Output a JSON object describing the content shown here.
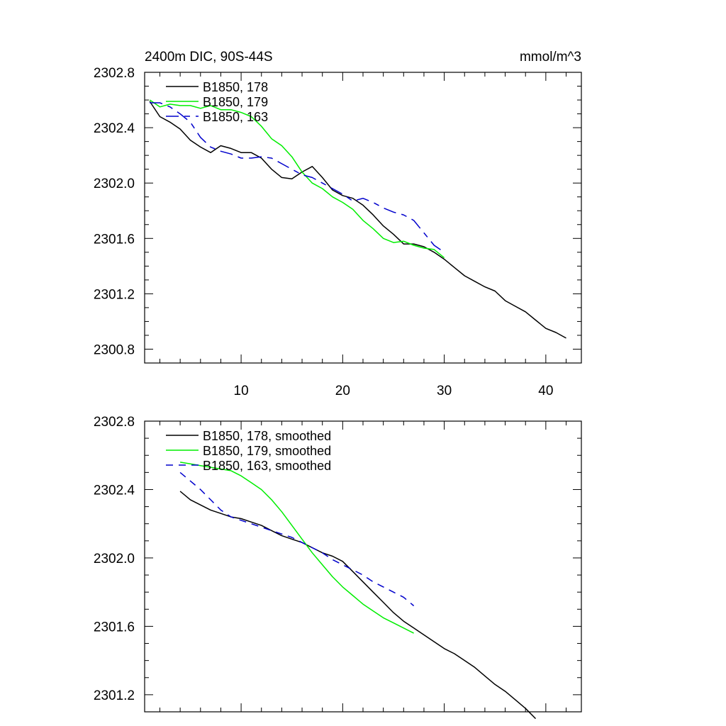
{
  "page": {
    "left_title": "2400m DIC, 90S-44S",
    "right_title": "mmol/m^3"
  },
  "colors": {
    "black": "#000000",
    "green": "#00ee00",
    "blue": "#0000cc"
  },
  "chart_data": [
    {
      "type": "line",
      "title": "2400m DIC, 90S-44S",
      "units": "mmol/m^3",
      "xlim": [
        0.5,
        43.5
      ],
      "ylim": [
        2300.7,
        2302.8
      ],
      "xticks": [
        10,
        20,
        30,
        40
      ],
      "xtick_labels": [
        "10",
        "20",
        "30",
        "40"
      ],
      "yticks": [
        2300.8,
        2301.2,
        2301.6,
        2302.0,
        2302.4,
        2302.8
      ],
      "ytick_labels": [
        "2300.8",
        "2301.2",
        "2301.6",
        "2302.0",
        "2302.4",
        "2302.8"
      ],
      "legend_position": "top-left",
      "series": [
        {
          "name": "B1850, 178",
          "color": "#000000",
          "dash": "solid",
          "x": [
            1,
            2,
            3,
            4,
            5,
            6,
            7,
            8,
            9,
            10,
            11,
            12,
            13,
            14,
            15,
            16,
            17,
            18,
            19,
            20,
            21,
            22,
            23,
            24,
            25,
            26,
            27,
            28,
            29,
            30,
            31,
            32,
            33,
            34,
            35,
            36,
            37,
            38,
            39,
            40,
            41,
            42
          ],
          "y": [
            2302.59,
            2302.48,
            2302.44,
            2302.39,
            2302.31,
            2302.26,
            2302.22,
            2302.27,
            2302.25,
            2302.22,
            2302.22,
            2302.18,
            2302.1,
            2302.04,
            2302.03,
            2302.08,
            2302.12,
            2302.04,
            2301.95,
            2301.91,
            2301.89,
            2301.84,
            2301.77,
            2301.69,
            2301.63,
            2301.56,
            2301.56,
            2301.54,
            2301.5,
            2301.45,
            2301.39,
            2301.33,
            2301.29,
            2301.25,
            2301.22,
            2301.15,
            2301.11,
            2301.07,
            2301.01,
            2300.95,
            2300.92,
            2300.88
          ]
        },
        {
          "name": "B1850, 179",
          "color": "#00ee00",
          "dash": "solid",
          "x": [
            1,
            2,
            3,
            4,
            5,
            6,
            7,
            8,
            9,
            10,
            11,
            12,
            13,
            14,
            15,
            16,
            17,
            18,
            19,
            20,
            21,
            22,
            23,
            24,
            25,
            26,
            27,
            28,
            29,
            30
          ],
          "y": [
            2302.6,
            2302.55,
            2302.57,
            2302.56,
            2302.56,
            2302.54,
            2302.56,
            2302.53,
            2302.53,
            2302.51,
            2302.48,
            2302.41,
            2302.32,
            2302.27,
            2302.19,
            2302.08,
            2302.0,
            2301.96,
            2301.9,
            2301.86,
            2301.81,
            2301.73,
            2301.67,
            2301.6,
            2301.57,
            2301.58,
            2301.55,
            2301.53,
            2301.52,
            2301.46
          ]
        },
        {
          "name": "B1850, 163",
          "color": "#0000cc",
          "dash": "dash",
          "x": [
            1,
            2,
            3,
            4,
            5,
            6,
            7,
            8,
            9,
            10,
            11,
            12,
            13,
            14,
            15,
            16,
            17,
            18,
            19,
            20,
            21,
            22,
            23,
            24,
            25,
            26,
            27,
            28,
            29,
            30
          ],
          "y": [
            2302.58,
            2302.58,
            2302.55,
            2302.5,
            2302.44,
            2302.33,
            2302.26,
            2302.23,
            2302.21,
            2302.18,
            2302.18,
            2302.19,
            2302.18,
            2302.14,
            2302.1,
            2302.06,
            2302.04,
            2302.0,
            2301.96,
            2301.92,
            2301.87,
            2301.89,
            2301.86,
            2301.82,
            2301.79,
            2301.77,
            2301.73,
            2301.64,
            2301.55,
            2301.5
          ]
        }
      ]
    },
    {
      "type": "line",
      "xlim": [
        0.5,
        43.5
      ],
      "ylim": [
        2301.1,
        2302.8
      ],
      "xticks": [
        10,
        20,
        30,
        40
      ],
      "xtick_labels": [
        "",
        "",
        "",
        ""
      ],
      "yticks": [
        2301.2,
        2301.6,
        2302.0,
        2302.4,
        2302.8
      ],
      "ytick_labels": [
        "2301.2",
        "2301.6",
        "2302.0",
        "2302.4",
        "2302.8"
      ],
      "legend_position": "top-left",
      "series": [
        {
          "name": "B1850, 178, smoothed",
          "color": "#000000",
          "dash": "solid",
          "x": [
            4,
            5,
            6,
            7,
            8,
            9,
            10,
            11,
            12,
            13,
            14,
            15,
            16,
            17,
            18,
            19,
            20,
            21,
            22,
            23,
            24,
            25,
            26,
            27,
            28,
            29,
            30,
            31,
            32,
            33,
            34,
            35,
            36,
            37,
            38,
            39
          ],
          "y": [
            2302.39,
            2302.34,
            2302.31,
            2302.28,
            2302.26,
            2302.24,
            2302.23,
            2302.21,
            2302.19,
            2302.16,
            2302.13,
            2302.11,
            2302.09,
            2302.06,
            2302.03,
            2302.01,
            2301.98,
            2301.92,
            2301.86,
            2301.8,
            2301.74,
            2301.68,
            2301.63,
            2301.59,
            2301.55,
            2301.51,
            2301.47,
            2301.44,
            2301.4,
            2301.36,
            2301.31,
            2301.26,
            2301.22,
            2301.17,
            2301.12,
            2301.06
          ]
        },
        {
          "name": "B1850, 179, smoothed",
          "color": "#00ee00",
          "dash": "solid",
          "x": [
            4,
            5,
            6,
            7,
            8,
            9,
            10,
            11,
            12,
            13,
            14,
            15,
            16,
            17,
            18,
            19,
            20,
            21,
            22,
            23,
            24,
            25,
            26,
            27
          ],
          "y": [
            2302.56,
            2302.55,
            2302.54,
            2302.53,
            2302.52,
            2302.51,
            2302.48,
            2302.44,
            2302.4,
            2302.34,
            2302.27,
            2302.19,
            2302.11,
            2302.03,
            2301.96,
            2301.89,
            2301.83,
            2301.78,
            2301.73,
            2301.69,
            2301.65,
            2301.62,
            2301.59,
            2301.56
          ]
        },
        {
          "name": "B1850, 163, smoothed",
          "color": "#0000cc",
          "dash": "dash",
          "x": [
            4,
            5,
            6,
            7,
            8,
            9,
            10,
            11,
            12,
            13,
            14,
            15,
            16,
            17,
            18,
            19,
            20,
            21,
            22,
            23,
            24,
            25,
            26,
            27
          ],
          "y": [
            2302.5,
            2302.45,
            2302.4,
            2302.34,
            2302.28,
            2302.24,
            2302.22,
            2302.2,
            2302.18,
            2302.16,
            2302.14,
            2302.12,
            2302.09,
            2302.06,
            2302.03,
            2301.99,
            2301.96,
            2301.93,
            2301.9,
            2301.86,
            2301.83,
            2301.8,
            2301.77,
            2301.72
          ]
        }
      ]
    }
  ]
}
